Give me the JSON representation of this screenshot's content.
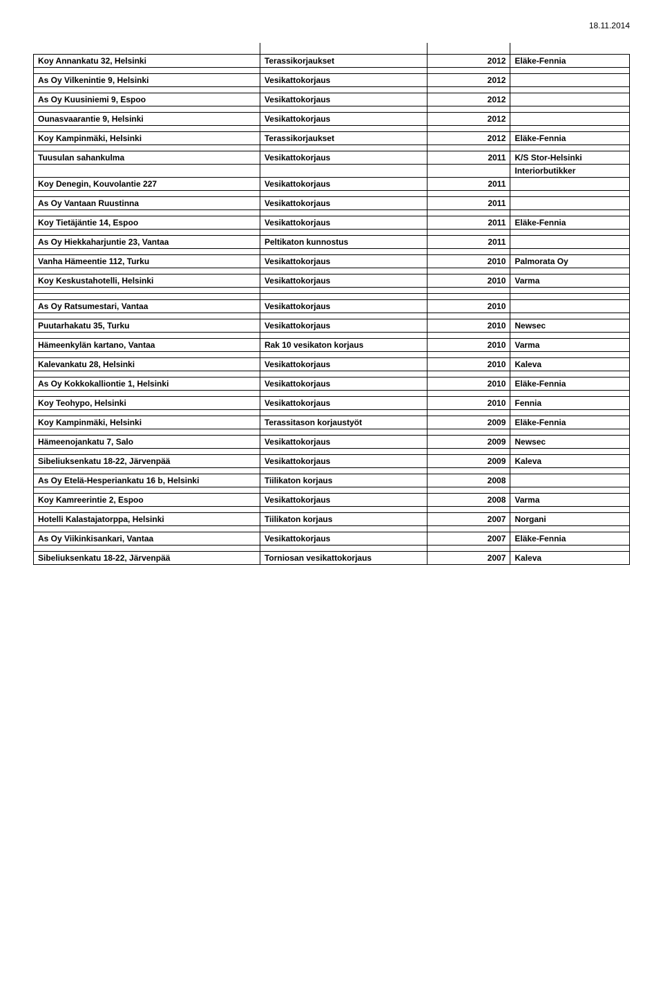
{
  "date": "18.11.2014",
  "rows": [
    {
      "type": "sep"
    },
    {
      "type": "data",
      "c1": "Koy Annankatu 32, Helsinki",
      "c2": "Terassikorjaukset",
      "c3": "2012",
      "c4": "Eläke-Fennia"
    },
    {
      "type": "empty"
    },
    {
      "type": "data",
      "c1": "As Oy Vilkenintie 9, Helsinki",
      "c2": "Vesikattokorjaus",
      "c3": "2012",
      "c4": ""
    },
    {
      "type": "empty"
    },
    {
      "type": "data",
      "c1": "As Oy Kuusiniemi 9, Espoo",
      "c2": "Vesikattokorjaus",
      "c3": "2012",
      "c4": ""
    },
    {
      "type": "empty"
    },
    {
      "type": "data",
      "c1": "Ounasvaarantie 9, Helsinki",
      "c2": "Vesikattokorjaus",
      "c3": "2012",
      "c4": ""
    },
    {
      "type": "empty"
    },
    {
      "type": "data",
      "c1": "Koy Kampinmäki, Helsinki",
      "c2": "Terassikorjaukset",
      "c3": "2012",
      "c4": "Eläke-Fennia"
    },
    {
      "type": "empty"
    },
    {
      "type": "data",
      "c1": "Tuusulan sahankulma",
      "c2": "Vesikattokorjaus",
      "c3": "2011",
      "c4": "K/S Stor-Helsinki"
    },
    {
      "type": "note",
      "c1": "",
      "c2": "",
      "c3": "",
      "c4": "Interiorbutikker"
    },
    {
      "type": "data",
      "c1": "Koy Denegin, Kouvolantie 227",
      "c2": "Vesikattokorjaus",
      "c3": "2011",
      "c4": ""
    },
    {
      "type": "empty"
    },
    {
      "type": "data",
      "c1": "As Oy Vantaan Ruustinna",
      "c2": "Vesikattokorjaus",
      "c3": "2011",
      "c4": ""
    },
    {
      "type": "empty"
    },
    {
      "type": "data",
      "c1": "Koy Tietäjäntie 14, Espoo",
      "c2": "Vesikattokorjaus",
      "c3": "2011",
      "c4": "Eläke-Fennia"
    },
    {
      "type": "empty"
    },
    {
      "type": "data",
      "c1": "As Oy Hiekkaharjuntie 23, Vantaa",
      "c2": "Peltikaton kunnostus",
      "c3": "2011",
      "c4": ""
    },
    {
      "type": "empty"
    },
    {
      "type": "data",
      "c1": "Vanha Hämeentie 112, Turku",
      "c2": "Vesikattokorjaus",
      "c3": "2010",
      "c4": "Palmorata Oy"
    },
    {
      "type": "empty"
    },
    {
      "type": "data",
      "c1": "Koy Keskustahotelli, Helsinki",
      "c2": "Vesikattokorjaus",
      "c3": "2010",
      "c4": "Varma"
    },
    {
      "type": "empty"
    },
    {
      "type": "empty"
    },
    {
      "type": "data",
      "c1": "As Oy Ratsumestari, Vantaa",
      "c2": "Vesikattokorjaus",
      "c3": "2010",
      "c4": ""
    },
    {
      "type": "empty"
    },
    {
      "type": "data",
      "c1": "Puutarhakatu 35, Turku",
      "c2": "Vesikattokorjaus",
      "c3": "2010",
      "c4": "Newsec"
    },
    {
      "type": "empty"
    },
    {
      "type": "data",
      "c1": "Hämeenkylän kartano, Vantaa",
      "c2": "Rak 10 vesikaton korjaus",
      "c3": "2010",
      "c4": "Varma"
    },
    {
      "type": "empty"
    },
    {
      "type": "data",
      "c1": "Kalevankatu 28, Helsinki",
      "c2": "Vesikattokorjaus",
      "c3": "2010",
      "c4": "Kaleva"
    },
    {
      "type": "empty"
    },
    {
      "type": "data",
      "c1": "As Oy Kokkokalliontie 1, Helsinki",
      "c2": "Vesikattokorjaus",
      "c3": "2010",
      "c4": "Eläke-Fennia"
    },
    {
      "type": "empty"
    },
    {
      "type": "data",
      "c1": "Koy Teohypo, Helsinki",
      "c2": "Vesikattokorjaus",
      "c3": "2010",
      "c4": "Fennia"
    },
    {
      "type": "empty"
    },
    {
      "type": "data",
      "c1": "Koy Kampinmäki, Helsinki",
      "c2": "Terassitason korjaustyöt",
      "c3": "2009",
      "c4": "Eläke-Fennia"
    },
    {
      "type": "empty"
    },
    {
      "type": "data",
      "c1": "Hämeenojankatu 7, Salo",
      "c2": "Vesikattokorjaus",
      "c3": "2009",
      "c4": "Newsec"
    },
    {
      "type": "empty"
    },
    {
      "type": "data",
      "c1": "Sibeliuksenkatu 18-22, Järvenpää",
      "c2": "Vesikattokorjaus",
      "c3": "2009",
      "c4": "Kaleva"
    },
    {
      "type": "empty"
    },
    {
      "type": "data",
      "c1": "As Oy Etelä-Hesperiankatu 16 b, Helsinki",
      "c2": "Tiilikaton korjaus",
      "c3": "2008",
      "c4": ""
    },
    {
      "type": "empty"
    },
    {
      "type": "data",
      "c1": "Koy Kamreerintie 2, Espoo",
      "c2": "Vesikattokorjaus",
      "c3": "2008",
      "c4": "Varma"
    },
    {
      "type": "empty"
    },
    {
      "type": "data",
      "c1": "Hotelli Kalastajatorppa, Helsinki",
      "c2": "Tiilikaton korjaus",
      "c3": "2007",
      "c4": "Norgani"
    },
    {
      "type": "empty"
    },
    {
      "type": "data",
      "c1": "As Oy Viikinkisankari, Vantaa",
      "c2": "Vesikattokorjaus",
      "c3": "2007",
      "c4": "Eläke-Fennia"
    },
    {
      "type": "empty"
    },
    {
      "type": "data",
      "c1": "Sibeliuksenkatu 18-22, Järvenpää",
      "c2": "Torniosan vesikattokorjaus",
      "c3": "2007",
      "c4": "Kaleva"
    }
  ]
}
